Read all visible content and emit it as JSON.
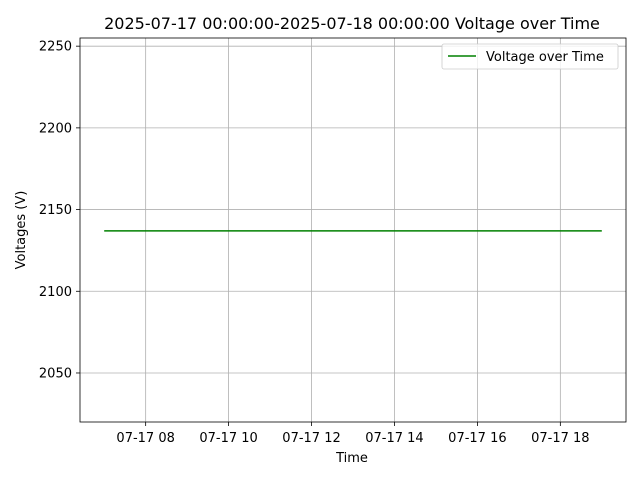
{
  "chart_data": {
    "type": "line",
    "title": "2025-07-17 00:00:00-2025-07-18 00:00:00 Voltage over Time",
    "xlabel": "Time",
    "ylabel": "Voltages (V)",
    "x_tick_labels": [
      "07-17 08",
      "07-17 10",
      "07-17 12",
      "07-17 14",
      "07-17 16",
      "07-17 18"
    ],
    "x_ticks": [
      "2025-07-17 08:00",
      "2025-07-17 10:00",
      "2025-07-17 12:00",
      "2025-07-17 14:00",
      "2025-07-17 16:00",
      "2025-07-17 18:00"
    ],
    "xlim": [
      "2025-07-17 06:25",
      "2025-07-17 19:35"
    ],
    "y_ticks": [
      2050,
      2100,
      2150,
      2200,
      2250
    ],
    "ylim": [
      2020,
      2255
    ],
    "grid": true,
    "legend": "top-right",
    "series": [
      {
        "name": "Voltage over Time",
        "color": "#008000",
        "x": [
          "2025-07-17 07:00",
          "2025-07-17 19:00"
        ],
        "y": [
          2137,
          2137
        ]
      }
    ]
  }
}
